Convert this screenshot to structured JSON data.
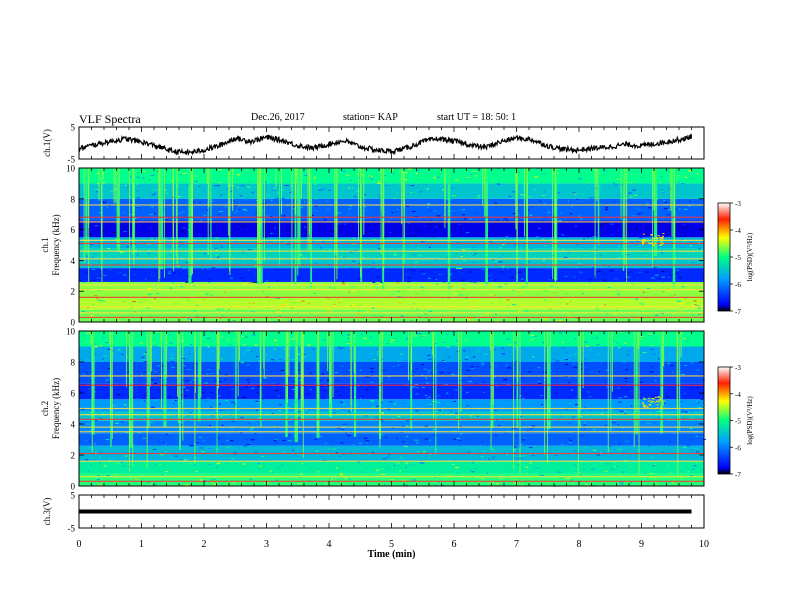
{
  "header": {
    "title": "VLF Spectra",
    "date": "Dec.26, 2017",
    "station": "station= KAP",
    "start": "start  UT =   18: 50: 1"
  },
  "chart_data": [
    {
      "type": "line",
      "panel": "ch1-waveform",
      "ylabel": "ch.1(V)",
      "ylim": [
        -5,
        5
      ],
      "yticks": [
        "5",
        "-5"
      ],
      "xlim": [
        0,
        10
      ],
      "color": "#000000",
      "x": [
        0,
        0.25,
        0.5,
        0.75,
        1.0,
        1.25,
        1.5,
        1.75,
        2.0,
        2.25,
        2.5,
        2.75,
        3.0,
        3.25,
        3.5,
        3.75,
        4.0,
        4.25,
        4.5,
        4.75,
        5.0,
        5.25,
        5.5,
        5.75,
        6.0,
        6.25,
        6.5,
        6.75,
        7.0,
        7.25,
        7.5,
        7.75,
        8.0,
        8.25,
        8.5,
        8.75,
        9.0,
        9.25,
        9.5,
        9.75,
        9.8
      ],
      "y": [
        -1.8,
        -0.5,
        0.5,
        1.3,
        0.3,
        -1.0,
        -2.6,
        -3.0,
        -2.2,
        -0.8,
        1.5,
        0.5,
        1.8,
        0.8,
        -0.8,
        -1.6,
        -0.3,
        0.7,
        -1.2,
        -2.2,
        -2.6,
        -1.5,
        0.4,
        1.4,
        0.6,
        -0.6,
        -1.4,
        0.4,
        1.6,
        1.0,
        -0.9,
        -2.0,
        -2.2,
        -1.6,
        -1.2,
        -0.4,
        -0.9,
        -0.1,
        0.7,
        1.6,
        2.2
      ]
    },
    {
      "type": "heatmap",
      "panel": "ch1-spectrogram",
      "ylabel": "ch.1\nFrequency (kHz)",
      "ylim": [
        0,
        10
      ],
      "yticks": [
        "0",
        "2",
        "4",
        "6",
        "8",
        "10"
      ],
      "xlim": [
        0,
        10
      ],
      "colorbar": {
        "label": "log(PSD)(V²/Hz)",
        "range": [
          -7,
          -3
        ],
        "ticks": [
          "-3",
          "-4",
          "-5",
          "-6",
          "-7"
        ]
      },
      "bands": [
        {
          "from": 0.0,
          "to": 0.8,
          "level": -4.7
        },
        {
          "from": 0.8,
          "to": 1.5,
          "level": -4.5
        },
        {
          "from": 1.5,
          "to": 2.6,
          "level": -4.6
        },
        {
          "from": 2.6,
          "to": 3.5,
          "level": -6.3
        },
        {
          "from": 3.5,
          "to": 4.2,
          "level": -5.4
        },
        {
          "from": 4.2,
          "to": 4.8,
          "level": -5.3
        },
        {
          "from": 4.8,
          "to": 5.5,
          "level": -5.5
        },
        {
          "from": 5.5,
          "to": 6.6,
          "level": -6.6
        },
        {
          "from": 6.6,
          "to": 8.0,
          "level": -6.0
        },
        {
          "from": 8.0,
          "to": 9.0,
          "level": -5.4
        },
        {
          "from": 9.0,
          "to": 10.0,
          "level": -5.0
        }
      ],
      "lines_khz": [
        0.3,
        0.6,
        1.0,
        1.6,
        2.1,
        2.4,
        3.7,
        4.1,
        4.6,
        5.1,
        5.3,
        6.5,
        6.8,
        7.6
      ],
      "bursts_min": [
        0.1,
        0.35,
        0.6,
        0.85,
        1.3,
        1.55,
        1.75,
        2.1,
        2.4,
        2.85,
        2.9,
        3.2,
        3.45,
        3.5,
        3.7,
        4.1,
        4.5,
        4.85,
        5.2,
        5.9,
        6.5,
        7.0,
        7.15,
        7.6,
        8.3,
        8.7,
        9.2,
        9.5
      ]
    },
    {
      "type": "heatmap",
      "panel": "ch2-spectrogram",
      "ylabel": "ch.2\nFrequency (kHz)",
      "ylim": [
        0,
        10
      ],
      "yticks": [
        "0",
        "2",
        "4",
        "6",
        "8",
        "10"
      ],
      "xlim": [
        0,
        10
      ],
      "colorbar": {
        "label": "log(PSD)(V²/Hz)",
        "range": [
          -7,
          -3
        ],
        "ticks": [
          "-3",
          "-4",
          "-5",
          "-6",
          "-7"
        ]
      },
      "bands": [
        {
          "from": 0.0,
          "to": 0.8,
          "level": -4.9
        },
        {
          "from": 0.8,
          "to": 1.6,
          "level": -5.1
        },
        {
          "from": 1.6,
          "to": 2.6,
          "level": -5.5
        },
        {
          "from": 2.6,
          "to": 3.4,
          "level": -6.0
        },
        {
          "from": 3.4,
          "to": 4.2,
          "level": -5.8
        },
        {
          "from": 4.2,
          "to": 4.8,
          "level": -5.4
        },
        {
          "from": 4.8,
          "to": 5.6,
          "level": -5.7
        },
        {
          "from": 5.6,
          "to": 6.6,
          "level": -6.3
        },
        {
          "from": 6.6,
          "to": 8.0,
          "level": -6.1
        },
        {
          "from": 8.0,
          "to": 9.0,
          "level": -5.6
        },
        {
          "from": 9.0,
          "to": 10.0,
          "level": -5.0
        }
      ],
      "lines_khz": [
        0.3,
        0.6,
        1.6,
        2.1,
        3.5,
        3.8,
        4.3,
        4.6,
        5.0,
        6.5,
        7.1
      ],
      "bursts_min": [
        0.2,
        0.5,
        0.8,
        1.1,
        1.35,
        1.6,
        1.9,
        2.2,
        2.5,
        2.9,
        3.3,
        3.45,
        3.55,
        3.8,
        4.0,
        4.4,
        4.8,
        5.3,
        5.7,
        6.1,
        6.6,
        7.0,
        7.5,
        8.0,
        8.5,
        8.9,
        9.3,
        9.6
      ]
    },
    {
      "type": "line",
      "panel": "ch3-waveform",
      "ylabel": "ch.3(V)",
      "ylim": [
        -5,
        5
      ],
      "yticks": [
        "5",
        "-5"
      ],
      "xlim": [
        0,
        10
      ],
      "color": "#000000",
      "x": [
        0,
        9.8
      ],
      "y": [
        0,
        0
      ]
    }
  ],
  "xaxis": {
    "label": "Time (min)",
    "ticks": [
      "0",
      "1",
      "2",
      "3",
      "4",
      "5",
      "6",
      "7",
      "8",
      "9",
      "10"
    ]
  }
}
